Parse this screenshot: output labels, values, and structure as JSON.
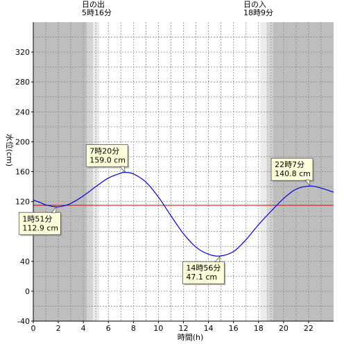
{
  "header": {
    "sunrise_label": "日の出",
    "sunrise_time": "5時16分",
    "sunset_label": "日の入",
    "sunset_time": "18時9分"
  },
  "chart_data": {
    "type": "line",
    "xlabel": "時間(h)",
    "ylabel": "水位(cm)",
    "xlim": [
      0,
      24
    ],
    "ylim": [
      -40,
      360
    ],
    "x_ticks": [
      0,
      2,
      4,
      6,
      8,
      10,
      12,
      14,
      16,
      18,
      20,
      22
    ],
    "y_ticks": [
      -40,
      0,
      40,
      80,
      120,
      160,
      200,
      240,
      280,
      320
    ],
    "grid": true,
    "sunrise_hour": 5.267,
    "sunset_hour": 18.15,
    "reference_level": 115,
    "series": [
      {
        "color": "#0000dd",
        "points": [
          [
            0.0,
            122.0
          ],
          [
            0.5,
            119.0
          ],
          [
            1.0,
            115.5
          ],
          [
            1.85,
            112.9
          ],
          [
            2.5,
            114.5
          ],
          [
            3.0,
            117.5
          ],
          [
            4.0,
            127.5
          ],
          [
            5.0,
            140.0
          ],
          [
            6.0,
            151.5
          ],
          [
            7.0,
            158.0
          ],
          [
            7.33,
            159.0
          ],
          [
            8.0,
            157.0
          ],
          [
            9.0,
            146.0
          ],
          [
            10.0,
            126.0
          ],
          [
            11.0,
            101.0
          ],
          [
            12.0,
            77.0
          ],
          [
            13.0,
            59.0
          ],
          [
            14.0,
            49.5
          ],
          [
            14.93,
            47.1
          ],
          [
            16.0,
            53.0
          ],
          [
            17.0,
            69.0
          ],
          [
            18.0,
            89.0
          ],
          [
            19.0,
            107.0
          ],
          [
            20.0,
            124.0
          ],
          [
            21.0,
            136.5
          ],
          [
            22.12,
            140.8
          ],
          [
            23.0,
            138.0
          ],
          [
            24.0,
            132.5
          ]
        ]
      }
    ],
    "annotations": [
      {
        "time": "1時51分",
        "value": "112.9 cm",
        "x": 1.85,
        "y": 112.9,
        "placement": "bottom-left"
      },
      {
        "time": "7時20分",
        "value": "159.0 cm",
        "x": 7.33,
        "y": 159.0,
        "placement": "top-left"
      },
      {
        "time": "14時56分",
        "value": "47.1 cm",
        "x": 14.93,
        "y": 47.1,
        "placement": "bottom-left"
      },
      {
        "time": "22時7分",
        "value": "140.8 cm",
        "x": 22.12,
        "y": 140.8,
        "placement": "top-left"
      }
    ],
    "colors": {
      "night": "#bebebe",
      "twilight_dark": "#d4d4d4",
      "twilight_light": "#ebebeb",
      "day": "#ffffff",
      "curve": "#0000dd",
      "reference": "#dd0000",
      "callout_fill": "#ffffdc"
    }
  }
}
